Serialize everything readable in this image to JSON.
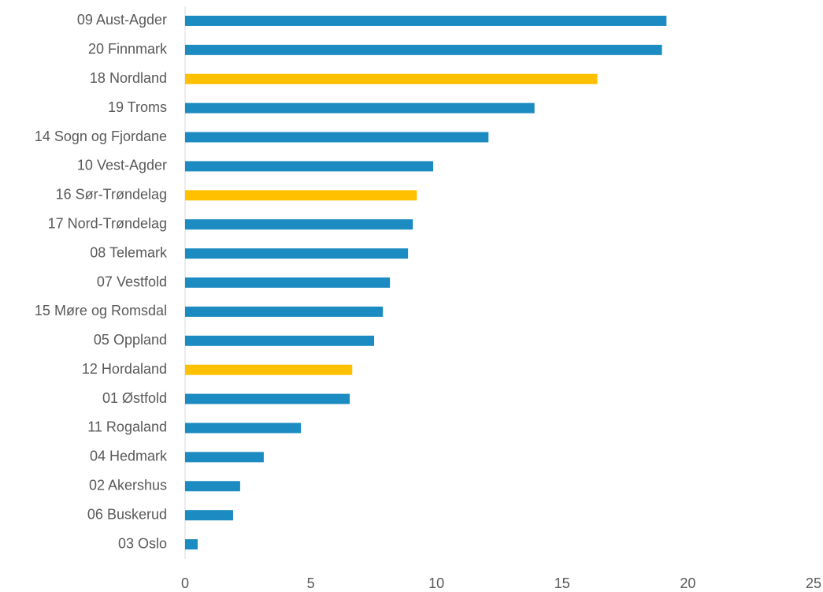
{
  "chart_data": {
    "type": "barh",
    "categories": [
      "09 Aust-Agder",
      "20 Finnmark",
      "18 Nordland",
      "19 Troms",
      "14 Sogn og Fjordane",
      "10 Vest-Agder",
      "16 Sør-Trøndelag",
      "17 Nord-Trøndelag",
      "08 Telemark",
      "07 Vestfold",
      "15 Møre og Romsdal",
      "05 Oppland",
      "12 Hordaland",
      "01 Østfold",
      "11 Rogaland",
      "04 Hedmark",
      "02 Akershus",
      "06 Buskerud",
      "03 Oslo"
    ],
    "values": [
      19.15,
      18.97,
      16.4,
      13.9,
      12.07,
      9.87,
      9.22,
      9.06,
      8.87,
      8.15,
      7.87,
      7.52,
      6.65,
      6.55,
      4.61,
      3.13,
      2.19,
      1.91,
      0.5
    ],
    "colors": [
      "#1b8bc1",
      "#1b8bc1",
      "#ffc000",
      "#1b8bc1",
      "#1b8bc1",
      "#1b8bc1",
      "#ffc000",
      "#1b8bc1",
      "#1b8bc1",
      "#1b8bc1",
      "#1b8bc1",
      "#1b8bc1",
      "#ffc000",
      "#1b8bc1",
      "#1b8bc1",
      "#1b8bc1",
      "#1b8bc1",
      "#1b8bc1",
      "#1b8bc1"
    ],
    "xlim": [
      0,
      25
    ],
    "xticks": [
      0,
      5,
      10,
      15,
      20,
      25
    ],
    "grid": false
  }
}
